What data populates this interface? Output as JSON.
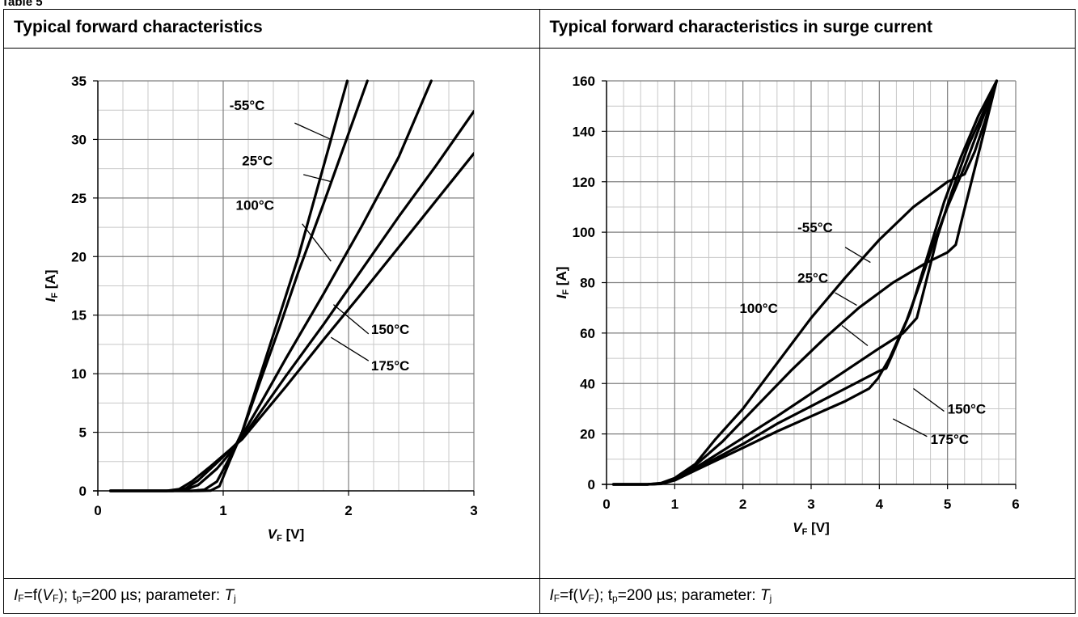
{
  "page": {
    "label": "Table 5"
  },
  "panels": [
    {
      "title": "Typical forward characteristics",
      "caption": {
        "f1": "F",
        "eq": "=f(",
        "f2": "F",
        "tp": "); t",
        "tpsub": "p",
        "rest": "=200 µs; parameter: ",
        "tjsub": "j",
        "i1": "I",
        "v1": "V",
        "t1": "T"
      }
    },
    {
      "title": "Typical forward characteristics in surge current",
      "caption": {
        "f1": "F",
        "eq": "=f(",
        "f2": "F",
        "tp": "); t",
        "tpsub": "p",
        "rest": "=200 µs; parameter: ",
        "tjsub": "j",
        "i1": "I",
        "v1": "V",
        "t1": "T"
      }
    }
  ],
  "chart_data": [
    {
      "type": "line",
      "title": "Typical forward characteristics",
      "xlabel": {
        "var": "V",
        "sub": "F",
        "unit": "[V]"
      },
      "ylabel": {
        "var": "I",
        "sub": "F",
        "unit": "[A]"
      },
      "xlim": [
        0,
        3
      ],
      "ylim": [
        0,
        35
      ],
      "xticks": [
        0,
        1,
        2,
        3
      ],
      "yticks": [
        0,
        5,
        10,
        15,
        20,
        25,
        30,
        35
      ],
      "grid": true,
      "series": [
        {
          "name": "-55°C",
          "points": [
            [
              0.1,
              0
            ],
            [
              0.8,
              0
            ],
            [
              0.9,
              0.02
            ],
            [
              0.97,
              0.4
            ],
            [
              1.05,
              2.5
            ],
            [
              1.15,
              5
            ],
            [
              1.3,
              10
            ],
            [
              1.45,
              15
            ],
            [
              1.6,
              20
            ],
            [
              1.73,
              25
            ],
            [
              1.86,
              30
            ],
            [
              1.99,
              35
            ]
          ]
        },
        {
          "name": "25°C",
          "points": [
            [
              0.1,
              0
            ],
            [
              0.75,
              0
            ],
            [
              0.85,
              0.1
            ],
            [
              0.95,
              0.8
            ],
            [
              1.05,
              2.8
            ],
            [
              1.15,
              5
            ],
            [
              1.3,
              9.5
            ],
            [
              1.45,
              14
            ],
            [
              1.6,
              18.7
            ],
            [
              1.8,
              24.5
            ],
            [
              2.0,
              30.5
            ],
            [
              2.15,
              35
            ]
          ]
        },
        {
          "name": "100°C",
          "points": [
            [
              0.1,
              0
            ],
            [
              0.6,
              0
            ],
            [
              0.7,
              0.1
            ],
            [
              0.8,
              0.5
            ],
            [
              0.95,
              1.9
            ],
            [
              1.1,
              3.8
            ],
            [
              1.3,
              7.5
            ],
            [
              1.5,
              11.3
            ],
            [
              1.8,
              16.8
            ],
            [
              2.1,
              22.5
            ],
            [
              2.4,
              28.5
            ],
            [
              2.66,
              35
            ]
          ]
        },
        {
          "name": "150°C",
          "points": [
            [
              0.1,
              0
            ],
            [
              0.6,
              0
            ],
            [
              0.7,
              0.2
            ],
            [
              0.8,
              0.9
            ],
            [
              0.95,
              2.4
            ],
            [
              1.15,
              4.5
            ],
            [
              1.5,
              9.8
            ],
            [
              1.8,
              14.2
            ],
            [
              2.1,
              18.8
            ],
            [
              2.4,
              23.4
            ],
            [
              2.7,
              27.8
            ],
            [
              3.0,
              32.4
            ]
          ]
        },
        {
          "name": "175°C",
          "points": [
            [
              0.1,
              0
            ],
            [
              0.55,
              0
            ],
            [
              0.65,
              0.15
            ],
            [
              0.75,
              0.8
            ],
            [
              0.9,
              2.1
            ],
            [
              1.15,
              4.4
            ],
            [
              1.5,
              8.9
            ],
            [
              1.8,
              12.9
            ],
            [
              2.1,
              16.8
            ],
            [
              2.4,
              20.8
            ],
            [
              2.7,
              24.8
            ],
            [
              3.0,
              28.8
            ]
          ]
        }
      ],
      "annotations": [
        {
          "text": "-55°C",
          "at": [
            1.05,
            32.5
          ],
          "leader": [
            [
              1.57,
              31.4
            ],
            [
              1.86,
              30.0
            ]
          ]
        },
        {
          "text": "25°C",
          "at": [
            1.15,
            27.8
          ],
          "leader": [
            [
              1.64,
              27.0
            ],
            [
              1.86,
              26.4
            ]
          ]
        },
        {
          "text": "100°C",
          "at": [
            1.1,
            24.0
          ],
          "leader": [
            [
              1.63,
              22.8
            ],
            [
              1.86,
              19.6
            ]
          ]
        },
        {
          "text": "150°C",
          "at": [
            2.18,
            13.4
          ],
          "leader": [
            [
              2.16,
              13.4
            ],
            [
              1.88,
              15.9
            ]
          ]
        },
        {
          "text": "175°C",
          "at": [
            2.18,
            10.3
          ],
          "leader": [
            [
              2.16,
              11.1
            ],
            [
              1.86,
              13.1
            ]
          ]
        }
      ]
    },
    {
      "type": "line",
      "title": "Typical forward characteristics in surge current",
      "xlabel": {
        "var": "V",
        "sub": "F",
        "unit": "[V]"
      },
      "ylabel": {
        "var": "I",
        "sub": "F",
        "unit": "[A]"
      },
      "xlim": [
        0,
        6
      ],
      "ylim": [
        0,
        160
      ],
      "xticks": [
        0,
        1,
        2,
        3,
        4,
        5,
        6
      ],
      "yticks": [
        0,
        20,
        40,
        60,
        80,
        100,
        120,
        140,
        160
      ],
      "grid": true,
      "series": [
        {
          "name": "-55°C",
          "points": [
            [
              0.1,
              0
            ],
            [
              0.6,
              0
            ],
            [
              0.8,
              0.5
            ],
            [
              1.0,
              2.5
            ],
            [
              1.3,
              8
            ],
            [
              1.6,
              18
            ],
            [
              2.0,
              30
            ],
            [
              2.5,
              48
            ],
            [
              3.0,
              66
            ],
            [
              3.5,
              82
            ],
            [
              4.0,
              97
            ],
            [
              4.5,
              110
            ],
            [
              5.0,
              120
            ],
            [
              5.25,
              123
            ],
            [
              5.4,
              132
            ],
            [
              5.55,
              144
            ],
            [
              5.72,
              160
            ]
          ]
        },
        {
          "name": "25°C",
          "points": [
            [
              0.1,
              0
            ],
            [
              0.6,
              0
            ],
            [
              0.8,
              0.4
            ],
            [
              1.0,
              2.3
            ],
            [
              1.3,
              7.5
            ],
            [
              1.7,
              17
            ],
            [
              2.2,
              31
            ],
            [
              2.7,
              45
            ],
            [
              3.2,
              58
            ],
            [
              3.7,
              70
            ],
            [
              4.2,
              80
            ],
            [
              4.7,
              88
            ],
            [
              5.0,
              92
            ],
            [
              5.12,
              95
            ],
            [
              5.22,
              106
            ],
            [
              5.35,
              120
            ],
            [
              5.5,
              136
            ],
            [
              5.72,
              160
            ]
          ]
        },
        {
          "name": "100°C",
          "points": [
            [
              0.1,
              0
            ],
            [
              0.6,
              0
            ],
            [
              0.8,
              0.3
            ],
            [
              1.0,
              2
            ],
            [
              1.3,
              6.5
            ],
            [
              1.8,
              15
            ],
            [
              2.5,
              27
            ],
            [
              3.0,
              36
            ],
            [
              3.5,
              45
            ],
            [
              4.0,
              54
            ],
            [
              4.35,
              60
            ],
            [
              4.55,
              66
            ],
            [
              4.7,
              82
            ],
            [
              4.85,
              98
            ],
            [
              5.05,
              115
            ],
            [
              5.3,
              134
            ],
            [
              5.5,
              146
            ],
            [
              5.72,
              160
            ]
          ]
        },
        {
          "name": "150°C",
          "points": [
            [
              0.1,
              0
            ],
            [
              0.6,
              0
            ],
            [
              0.8,
              0.3
            ],
            [
              1.0,
              1.8
            ],
            [
              1.3,
              6
            ],
            [
              2.0,
              16
            ],
            [
              2.5,
              24
            ],
            [
              3.0,
              31
            ],
            [
              3.5,
              38
            ],
            [
              4.0,
              45
            ],
            [
              4.1,
              46
            ],
            [
              4.2,
              52
            ],
            [
              4.45,
              68
            ],
            [
              4.7,
              90
            ],
            [
              4.95,
              112
            ],
            [
              5.2,
              130
            ],
            [
              5.45,
              146
            ],
            [
              5.72,
              160
            ]
          ]
        },
        {
          "name": "175°C",
          "points": [
            [
              0.1,
              0
            ],
            [
              0.6,
              0
            ],
            [
              0.8,
              0.2
            ],
            [
              1.0,
              1.6
            ],
            [
              1.3,
              5.5
            ],
            [
              2.0,
              14.5
            ],
            [
              2.5,
              21
            ],
            [
              3.0,
              27
            ],
            [
              3.5,
              33
            ],
            [
              3.85,
              38
            ],
            [
              3.98,
              42
            ],
            [
              4.15,
              50
            ],
            [
              4.4,
              65
            ],
            [
              4.6,
              80
            ],
            [
              4.8,
              96
            ],
            [
              5.0,
              110
            ],
            [
              5.25,
              126
            ],
            [
              5.5,
              144
            ],
            [
              5.72,
              160
            ]
          ]
        }
      ],
      "annotations": [
        {
          "text": "-55°C",
          "at": [
            2.8,
            100
          ],
          "leader": [
            [
              3.5,
              94
            ],
            [
              3.87,
              88
            ]
          ]
        },
        {
          "text": "25°C",
          "at": [
            2.8,
            80
          ],
          "leader": [
            [
              3.35,
              76
            ],
            [
              3.67,
              71
            ]
          ]
        },
        {
          "text": "100°C",
          "at": [
            1.95,
            68
          ],
          "leader": [
            [
              3.45,
              63
            ],
            [
              3.83,
              55
            ]
          ]
        },
        {
          "text": "150°C",
          "at": [
            5.0,
            28
          ],
          "leader": [
            [
              4.95,
              29
            ],
            [
              4.5,
              38
            ]
          ]
        },
        {
          "text": "175°C",
          "at": [
            4.75,
            16
          ],
          "leader": [
            [
              4.7,
              19
            ],
            [
              4.2,
              26
            ]
          ]
        }
      ]
    }
  ]
}
